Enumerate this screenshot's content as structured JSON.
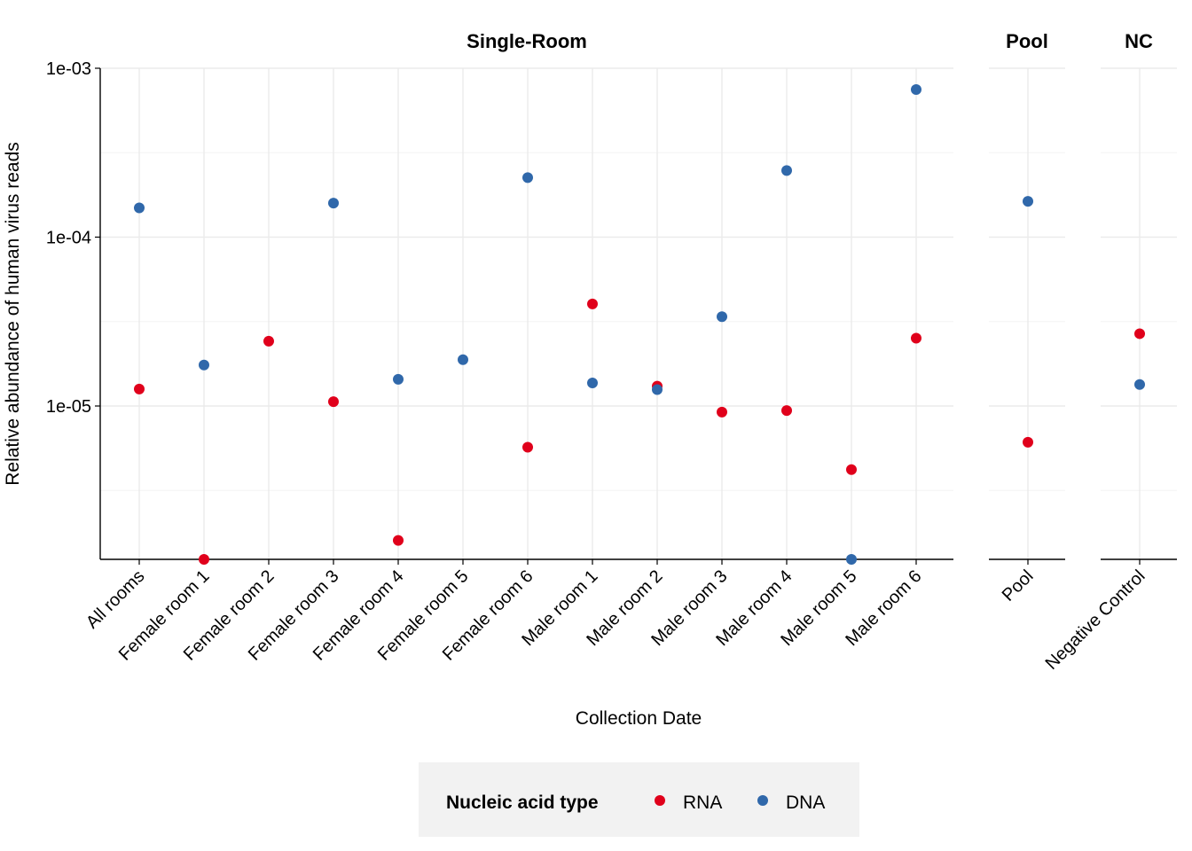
{
  "chart_data": {
    "type": "scatter",
    "scale": "log10",
    "ylabel": "Relative abundance of human virus reads",
    "xlabel": "Collection Date",
    "y_ticks": [
      "1e-05",
      "1e-04",
      "1e-03"
    ],
    "y_tick_values": [
      1e-05,
      0.0001,
      0.001
    ],
    "ylim": [
      1.2e-06,
      0.001
    ],
    "grid": true,
    "legend": {
      "title": "Nucleic acid type",
      "position": "bottom",
      "entries": [
        {
          "name": "RNA",
          "color": "#e0001b"
        },
        {
          "name": "DNA",
          "color": "#3068aa"
        }
      ]
    },
    "panels": [
      {
        "title": "Single-Room",
        "categories": [
          "All rooms",
          "Female room 1",
          "Female room 2",
          "Female room 3",
          "Female room 4",
          "Female room 5",
          "Female room 6",
          "Male room 1",
          "Male room 2",
          "Male room 3",
          "Male room 4",
          "Male room 5",
          "Male room 6"
        ],
        "series": [
          {
            "name": "RNA",
            "values": [
              1.26e-05,
              1.2e-06,
              2.42e-05,
              1.06e-05,
              1.6e-06,
              null,
              5.7e-06,
              4.02e-05,
              1.31e-05,
              9.2e-06,
              9.4e-06,
              4.2e-06,
              2.52e-05
            ]
          },
          {
            "name": "DNA",
            "values": [
              0.000149,
              1.75e-05,
              null,
              0.000159,
              1.44e-05,
              1.88e-05,
              0.000225,
              1.37e-05,
              1.25e-05,
              3.38e-05,
              0.000248,
              1.2e-06,
              0.000748
            ]
          }
        ]
      },
      {
        "title": "Pool",
        "categories": [
          "Pool"
        ],
        "series": [
          {
            "name": "RNA",
            "values": [
              6.1e-06
            ]
          },
          {
            "name": "DNA",
            "values": [
              0.000163
            ]
          }
        ]
      },
      {
        "title": "NC",
        "categories": [
          "Negative Control"
        ],
        "series": [
          {
            "name": "RNA",
            "values": [
              2.68e-05
            ]
          },
          {
            "name": "DNA",
            "values": [
              1.34e-05
            ]
          }
        ]
      }
    ]
  }
}
